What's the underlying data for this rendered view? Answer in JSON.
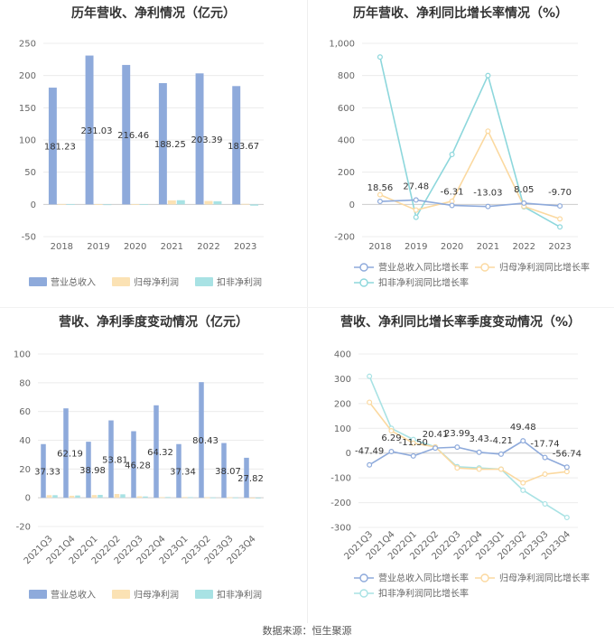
{
  "source_text": "数据来源：恒生聚源",
  "chart_data": [
    {
      "type": "bar",
      "title": "历年营收、净利情况（亿元）",
      "categories": [
        "2018",
        "2019",
        "2020",
        "2021",
        "2022",
        "2023"
      ],
      "ylim": [
        -50,
        250
      ],
      "yticks": [
        -50,
        0,
        50,
        100,
        150,
        200,
        250
      ],
      "series": [
        {
          "name": "营业总收入",
          "color": "#8eaadb",
          "values": [
            181.23,
            231.03,
            216.46,
            188.25,
            203.39,
            183.67
          ],
          "labels": [
            "181.23",
            "231.03",
            "216.46",
            "188.25",
            "203.39",
            "183.67"
          ]
        },
        {
          "name": "归母净利润",
          "color": "#fbe2b4",
          "values": [
            0.6,
            0.3,
            0.2,
            6.2,
            5.3,
            0.8
          ]
        },
        {
          "name": "扣非净利润",
          "color": "#a8e2e4",
          "values": [
            0.5,
            -0.3,
            0.3,
            6.5,
            4.9,
            -2.0
          ]
        }
      ],
      "legend": "bottom",
      "grid": true
    },
    {
      "type": "line",
      "title": "历年营收、净利同比增长率情况（%）",
      "categories": [
        "2018",
        "2019",
        "2020",
        "2021",
        "2022",
        "2023"
      ],
      "ylim": [
        -200,
        1000
      ],
      "yticks": [
        -200,
        0,
        200,
        400,
        600,
        800,
        1000
      ],
      "yticklabels": [
        "-200",
        "0",
        "200",
        "400",
        "600",
        "800",
        "1,000"
      ],
      "series": [
        {
          "name": "营业总收入同比增长率",
          "color": "#8eaadb",
          "values": [
            18.56,
            27.48,
            -6.31,
            -13.03,
            8.05,
            -9.7
          ],
          "labels": [
            "18.56",
            "27.48",
            "-6.31",
            "-13.03",
            "8.05",
            "-9.70"
          ]
        },
        {
          "name": "归母净利润同比增长率",
          "color": "#fbd9a0",
          "values": [
            60,
            -35,
            20,
            455,
            -12,
            -90
          ]
        },
        {
          "name": "扣非净利润同比增长率",
          "color": "#8dd7dc",
          "values": [
            915,
            -80,
            310,
            800,
            -15,
            -140
          ]
        }
      ],
      "legend": "bottom",
      "grid": true
    },
    {
      "type": "bar",
      "title": "营收、净利季度变动情况（亿元）",
      "categories": [
        "2021Q3",
        "2021Q4",
        "2022Q1",
        "2022Q2",
        "2022Q3",
        "2022Q4",
        "2023Q1",
        "2023Q2",
        "2023Q3",
        "2023Q4"
      ],
      "ylim": [
        -20,
        100
      ],
      "yticks": [
        -20,
        0,
        20,
        40,
        60,
        80,
        100
      ],
      "series": [
        {
          "name": "营业总收入",
          "color": "#8eaadb",
          "values": [
            37.33,
            62.19,
            38.98,
            53.81,
            46.28,
            64.32,
            37.34,
            80.43,
            38.07,
            27.82
          ],
          "labels": [
            "37.33",
            "62.19",
            "38.98",
            "53.81",
            "46.28",
            "64.32",
            "37.34",
            "80.43",
            "38.07",
            "27.82"
          ]
        },
        {
          "name": "归母净利润",
          "color": "#fbe2b4",
          "values": [
            1.8,
            1.4,
            1.9,
            2.6,
            1.0,
            0.4,
            0.5,
            0.3,
            0.3,
            -0.3
          ]
        },
        {
          "name": "扣非净利润",
          "color": "#a8e2e4",
          "values": [
            1.8,
            1.6,
            2.0,
            2.4,
            0.9,
            0.5,
            0.4,
            0.2,
            0.2,
            -0.5
          ]
        }
      ],
      "legend": "bottom",
      "grid": true
    },
    {
      "type": "line",
      "title": "营收、净利同比增长率季度变动情况（%）",
      "categories": [
        "2021Q3",
        "2021Q4",
        "2022Q1",
        "2022Q2",
        "2022Q3",
        "2022Q4",
        "2023Q1",
        "2023Q2",
        "2023Q3",
        "2023Q4"
      ],
      "ylim": [
        -300,
        400
      ],
      "yticks": [
        -300,
        -200,
        -100,
        0,
        100,
        200,
        300,
        400
      ],
      "series": [
        {
          "name": "营业总收入同比增长率",
          "color": "#8eaadb",
          "values": [
            -47.49,
            6.29,
            -11.5,
            20.41,
            23.99,
            3.43,
            -4.21,
            49.48,
            -17.74,
            -56.74
          ],
          "labels": [
            "-47.49",
            "6.29",
            "-11.50",
            "20.41",
            "23.99",
            "3.43",
            "-4.21",
            "49.48",
            "-17.74",
            "-56.74"
          ]
        },
        {
          "name": "归母净利润同比增长率",
          "color": "#fbd9a0",
          "values": [
            205,
            90,
            40,
            25,
            -60,
            -65,
            -65,
            -120,
            -85,
            -75
          ]
        },
        {
          "name": "扣非净利润同比增长率",
          "color": "#a8e2e4",
          "values": [
            310,
            100,
            55,
            25,
            -55,
            -60,
            -65,
            -150,
            -205,
            -260
          ]
        }
      ],
      "legend": "bottom",
      "grid": true
    }
  ]
}
